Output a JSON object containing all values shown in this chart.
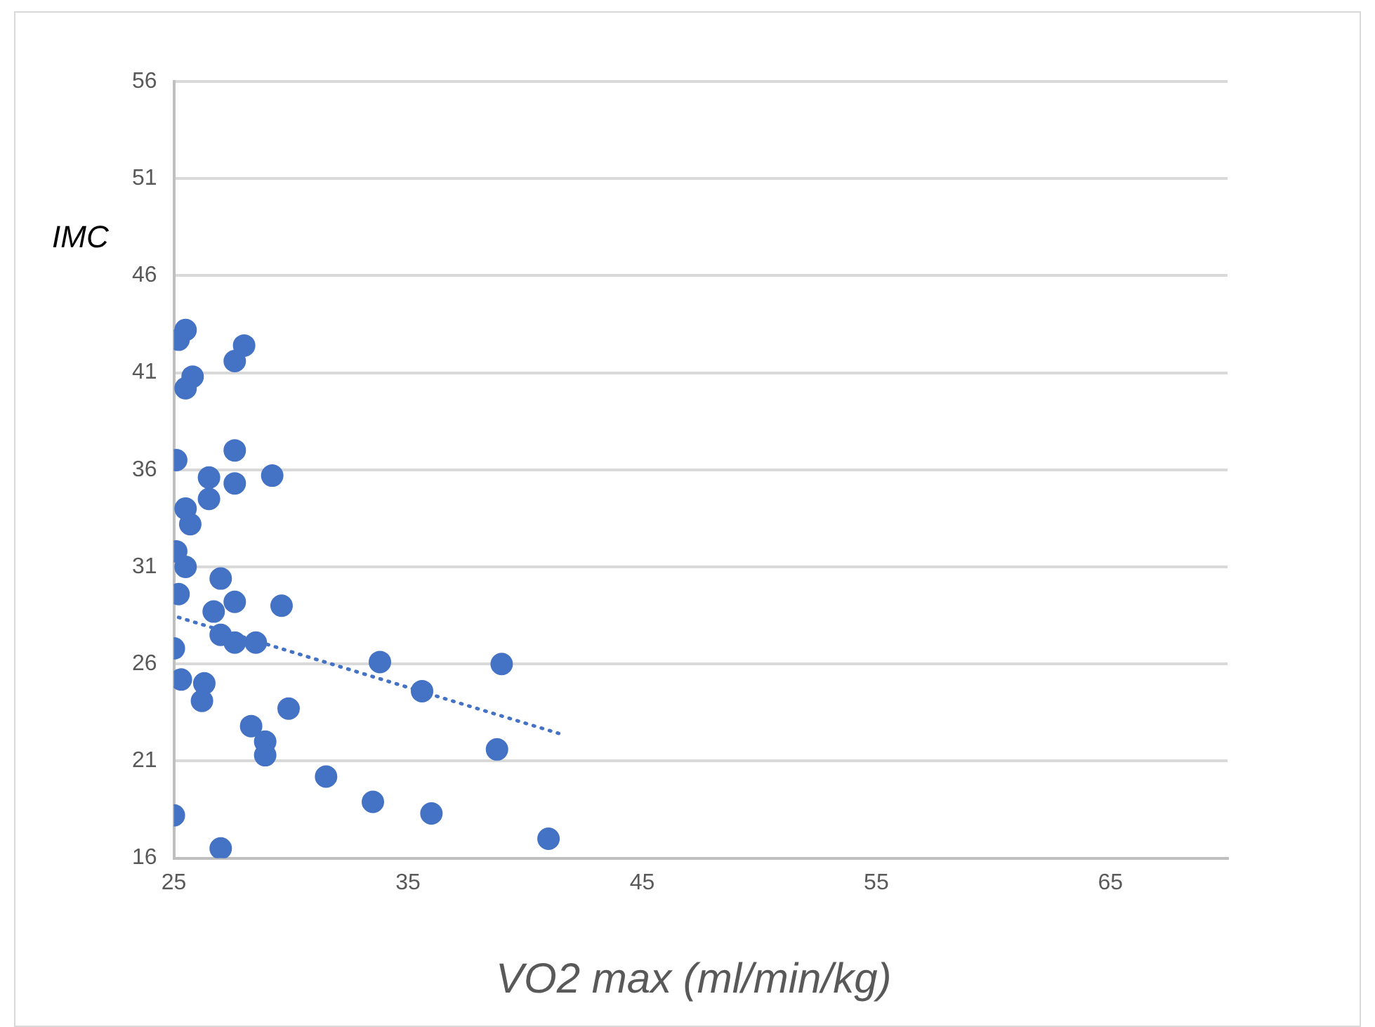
{
  "chart_data": {
    "type": "scatter",
    "xlabel": "VO2 max (ml/min/kg)",
    "ylabel": "IMC",
    "xlim": [
      25,
      70
    ],
    "xticks": [
      25,
      35,
      45,
      55,
      65
    ],
    "ylim": [
      16,
      56
    ],
    "yticks": [
      16,
      21,
      26,
      31,
      36,
      41,
      46,
      51,
      56
    ],
    "grid": "y",
    "legend": false,
    "marker": "circle",
    "series": [
      {
        "color": "#4472c4",
        "x": [
          25.2,
          25.5,
          28.0,
          27.6,
          25.8,
          25.5,
          25.1,
          27.6,
          29.2,
          26.5,
          27.6,
          26.5,
          25.5,
          25.7,
          25.1,
          25.5,
          27.0,
          25.2,
          27.6,
          29.6,
          26.7,
          27.0,
          27.6,
          28.5,
          25.0,
          33.8,
          39.0,
          35.6,
          25.3,
          26.3,
          26.2,
          29.9,
          28.3,
          28.9,
          28.9,
          38.8,
          31.5,
          33.5,
          36.0,
          25.0,
          27.0,
          41.0
        ],
        "values": [
          42.7,
          43.2,
          42.4,
          41.6,
          40.8,
          40.2,
          36.5,
          37.0,
          35.7,
          35.6,
          35.3,
          34.5,
          34.0,
          33.2,
          31.8,
          31.0,
          30.4,
          29.6,
          29.2,
          29.0,
          28.7,
          27.5,
          27.1,
          27.1,
          26.8,
          26.1,
          26.0,
          24.6,
          25.2,
          25.0,
          24.1,
          23.7,
          22.8,
          22.0,
          21.3,
          21.6,
          20.2,
          18.9,
          18.3,
          18.2,
          16.5,
          17.0
        ]
      },
      {
        "type": "line",
        "color": "#4472c4",
        "line_style": "dotted",
        "marker": "none",
        "x": [
          25.2,
          41.5
        ],
        "values": [
          28.4,
          22.4
        ]
      }
    ]
  }
}
